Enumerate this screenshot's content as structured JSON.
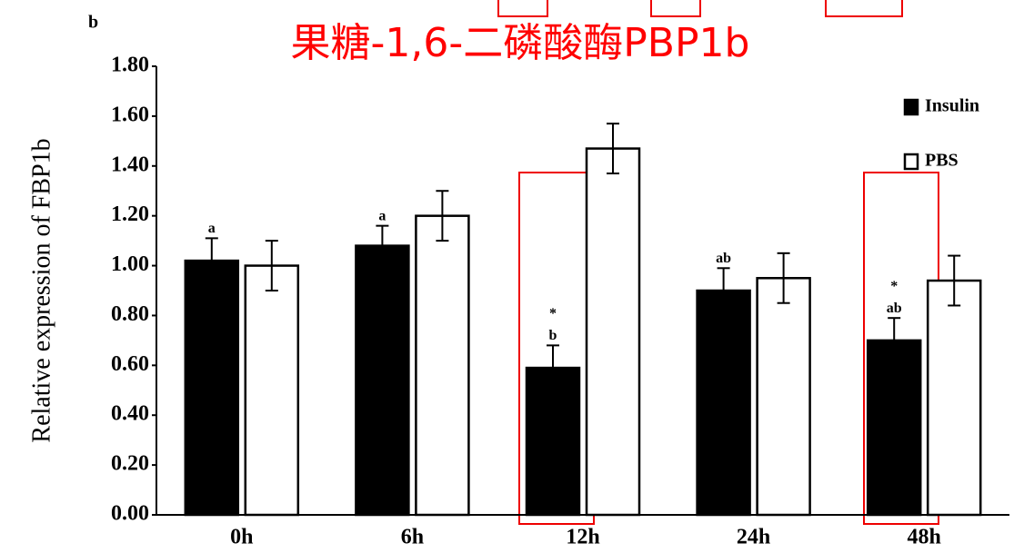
{
  "chart_data": {
    "type": "bar",
    "panel_label": "b",
    "title": "果糖-1,6-二磷酸酶PBP1b",
    "y_label": "Relative expression of FBP1b",
    "categories": [
      "0h",
      "6h",
      "12h",
      "24h",
      "48h"
    ],
    "series": [
      {
        "name": "Insulin",
        "color": "#000000",
        "values": [
          1.02,
          1.08,
          0.59,
          0.9,
          0.7
        ],
        "errors": [
          0.09,
          0.08,
          0.09,
          0.09,
          0.09
        ],
        "letters": [
          "a",
          "a",
          "b",
          "ab",
          "ab"
        ],
        "marks": [
          null,
          null,
          "*",
          null,
          "*"
        ]
      },
      {
        "name": "PBS",
        "color": "#ffffff",
        "values": [
          1.0,
          1.2,
          1.47,
          0.95,
          0.94
        ],
        "errors": [
          0.1,
          0.1,
          0.1,
          0.1,
          0.1
        ]
      }
    ],
    "ylim": [
      0,
      1.8
    ],
    "yticks": [
      {
        "value": 0,
        "label": "0.00"
      },
      {
        "value": 0.2,
        "label": "0.20"
      },
      {
        "value": 0.4,
        "label": "0.40"
      },
      {
        "value": 0.6,
        "label": "0.60"
      },
      {
        "value": 0.8,
        "label": "0.80"
      },
      {
        "value": 1.0,
        "label": "1.00"
      },
      {
        "value": 1.2,
        "label": "1.20"
      },
      {
        "value": 1.4,
        "label": "1.40"
      },
      {
        "value": 1.6,
        "label": "1.60"
      },
      {
        "value": 1.8,
        "label": "1.80"
      }
    ],
    "legend": "top-right"
  }
}
